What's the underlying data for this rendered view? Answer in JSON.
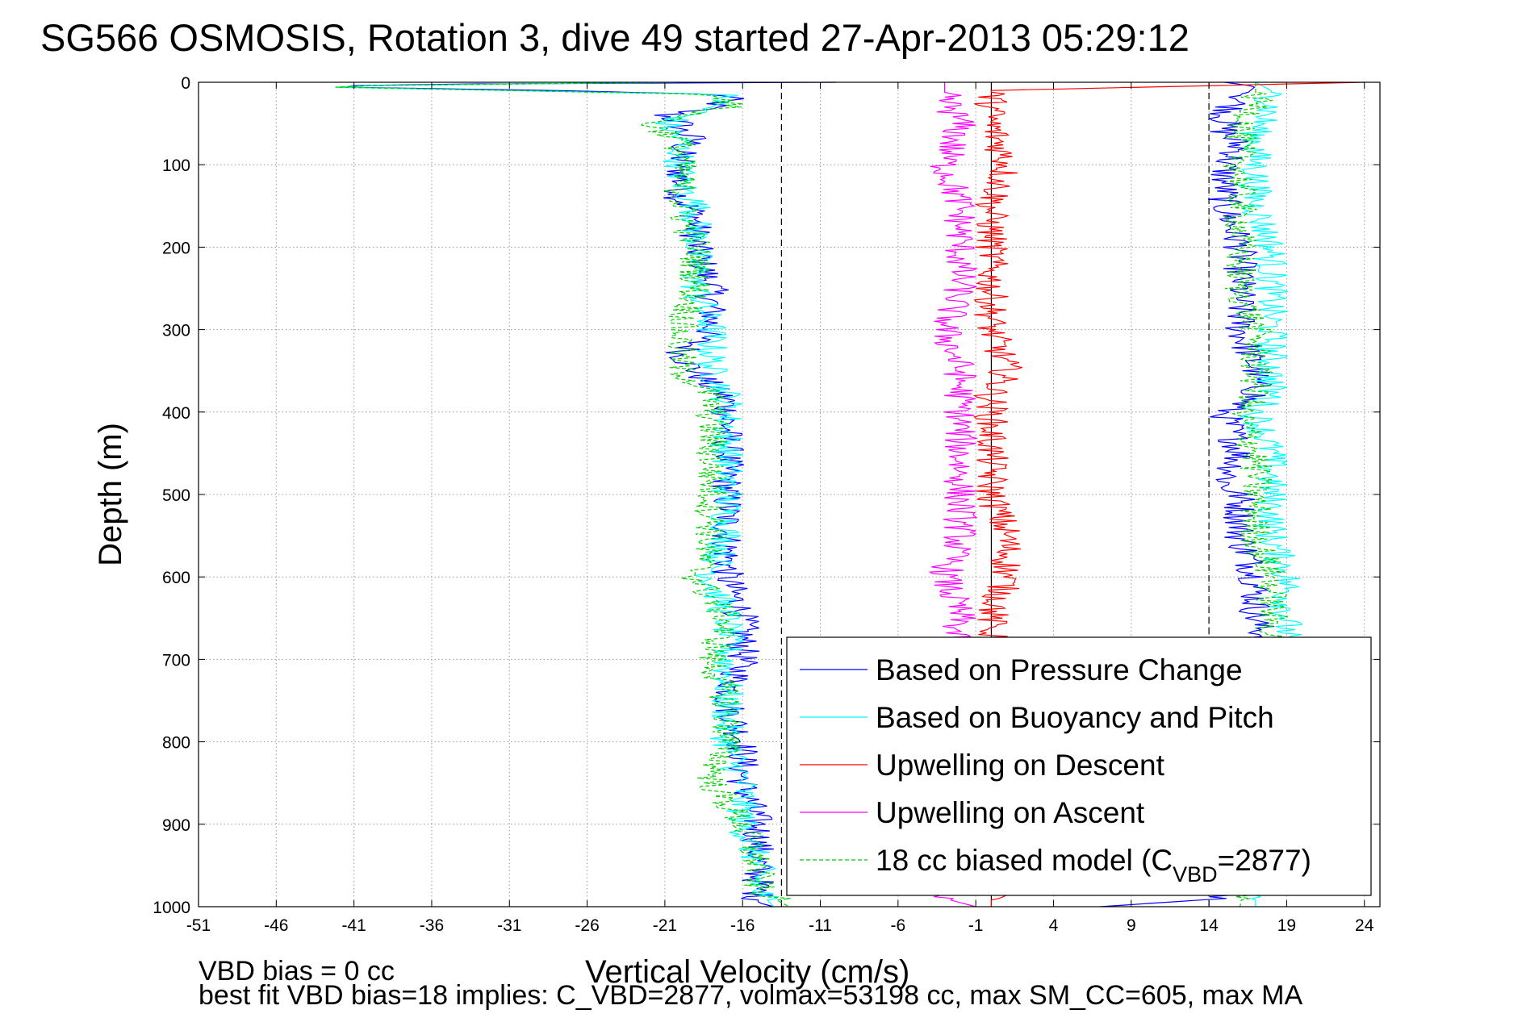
{
  "chart_data": {
    "type": "line",
    "title": "SG566 OSMOSIS, Rotation 3, dive 49 started 27-Apr-2013 05:29:12",
    "xlabel": "Vertical Velocity (cm/s)",
    "ylabel": "Depth (m)",
    "xlim": [
      -51,
      25
    ],
    "ylim": [
      1000,
      0
    ],
    "y_reversed": true,
    "xticks": [
      -51,
      -46,
      -41,
      -36,
      -31,
      -26,
      -21,
      -16,
      -11,
      -6,
      -1,
      4,
      9,
      14,
      19,
      24
    ],
    "yticks": [
      0,
      100,
      200,
      300,
      400,
      500,
      600,
      700,
      800,
      900,
      1000
    ],
    "grid": true,
    "legend_position": "bottom-right",
    "reference_lines": [
      {
        "x": -13.5,
        "style": "dashed"
      },
      {
        "x": 14,
        "style": "dashed"
      },
      {
        "x": 0,
        "style": "solid"
      }
    ],
    "series": [
      {
        "name": "Based on Pressure Change",
        "color": "#0000ff",
        "style": "solid",
        "groups": [
          {
            "depth": [
              0,
              2,
              5,
              10,
              15,
              20,
              30,
              40,
              50,
              60,
              70,
              80,
              100,
              120,
              140,
              160,
              200,
              250,
              300,
              330,
              350,
              370,
              385,
              400,
              450,
              500,
              550,
              600,
              650,
              700,
              750,
              800,
              850,
              900,
              950,
              980,
              995,
              1000
            ],
            "velocity": [
              -10,
              -33,
              -45,
              -28,
              -17,
              -17,
              -18,
              -21,
              -20,
              -20,
              -19,
              -20,
              -20,
              -20,
              -20,
              -19,
              -19,
              -18,
              -18,
              -20,
              -19,
              -18,
              -17,
              -17,
              -17,
              -17,
              -17,
              -17,
              -16,
              -16,
              -17,
              -16,
              -16,
              -15,
              -15,
              -15,
              -15,
              -14
            ]
          },
          {
            "depth": [
              0,
              5,
              20,
              40,
              60,
              80,
              100,
              120,
              150,
              200,
              250,
              300,
              350,
              380,
              400,
              450,
              490,
              500,
              550,
              600,
              650,
              700,
              750,
              800,
              850,
              900,
              950,
              990,
              1000
            ],
            "velocity": [
              15,
              17,
              16,
              15,
              15,
              16,
              15,
              15,
              15,
              16,
              16,
              16,
              17,
              17,
              15,
              16,
              15,
              16,
              16,
              17,
              17,
              18,
              18,
              17,
              17,
              17,
              17,
              15,
              7
            ]
          }
        ]
      },
      {
        "name": "Based on Buoyancy and Pitch",
        "color": "#00ffff",
        "style": "solid",
        "groups": [
          {
            "depth": [
              0,
              5,
              15,
              30,
              50,
              70,
              90,
              120,
              150,
              200,
              250,
              300,
              350,
              380,
              400,
              450,
              500,
              550,
              600,
              650,
              700,
              750,
              800,
              850,
              900,
              950,
              980,
              1000
            ],
            "velocity": [
              -20,
              -45,
              -17,
              -18,
              -21,
              -20,
              -20,
              -20,
              -19,
              -19,
              -19,
              -18,
              -18,
              -17,
              -17,
              -17,
              -17,
              -17,
              -18,
              -17,
              -17,
              -17,
              -17,
              -16,
              -16,
              -15,
              -15,
              -14
            ]
          },
          {
            "depth": [
              0,
              10,
              30,
              60,
              100,
              150,
              200,
              250,
              300,
              350,
              380,
              400,
              450,
              500,
              550,
              600,
              650,
              700,
              800,
              900,
              1000
            ],
            "velocity": [
              17,
              18,
              18,
              17,
              17,
              17,
              18,
              18,
              18,
              18,
              18,
              17,
              18,
              18,
              18,
              19,
              19,
              19,
              18,
              17,
              17
            ]
          }
        ]
      },
      {
        "name": "Upwelling on Descent",
        "color": "#ff0000",
        "style": "solid",
        "groups": [
          {
            "depth": [
              0,
              10,
              50,
              100,
              150,
              200,
              250,
              300,
              350,
              380,
              400,
              450,
              500,
              550,
              600,
              650,
              700,
              800,
              900,
              950,
              990,
              1000
            ],
            "velocity": [
              24,
              0,
              0,
              1,
              0,
              0,
              0,
              0,
              1,
              0,
              0,
              0,
              0,
              1,
              1,
              0,
              0,
              0,
              0,
              0,
              0,
              0
            ]
          }
        ]
      },
      {
        "name": "Upwelling on Ascent",
        "color": "#ff00ff",
        "style": "solid",
        "groups": [
          {
            "depth": [
              0,
              20,
              50,
              100,
              150,
              200,
              250,
              300,
              350,
              380,
              400,
              450,
              500,
              550,
              600,
              650,
              700,
              800,
              900,
              950,
              990,
              1000
            ],
            "velocity": [
              -3,
              -3,
              -2,
              -3,
              -2,
              -2,
              -2,
              -3,
              -2,
              -2,
              -2,
              -2,
              -2,
              -2,
              -3,
              -2,
              -3,
              -3,
              -2,
              -2,
              -3,
              -1
            ]
          }
        ]
      },
      {
        "name": "18 cc biased model (C",
        "name_sub": "VBD",
        "name_tail": "=2877)",
        "color": "#00cc00",
        "style": "dashed",
        "groups": [
          {
            "depth": [
              0,
              5,
              15,
              30,
              50,
              70,
              90,
              120,
              150,
              200,
              250,
              300,
              350,
              380,
              400,
              450,
              500,
              550,
              600,
              650,
              700,
              750,
              800,
              850,
              900,
              950,
              980,
              1000
            ],
            "velocity": [
              -20,
              -45,
              -17,
              -17,
              -22,
              -20,
              -20,
              -20,
              -20,
              -19,
              -19,
              -20,
              -20,
              -18,
              -18,
              -18,
              -18,
              -18,
              -19,
              -17,
              -18,
              -17,
              -17,
              -18,
              -16,
              -15,
              -15,
              -13
            ]
          },
          {
            "depth": [
              0,
              10,
              30,
              60,
              100,
              150,
              200,
              250,
              300,
              350,
              380,
              400,
              450,
              500,
              550,
              600,
              650,
              700,
              800,
              900,
              1000
            ],
            "velocity": [
              17,
              17,
              17,
              16,
              16,
              16,
              16,
              16,
              17,
              17,
              17,
              16,
              17,
              17,
              17,
              18,
              18,
              18,
              18,
              17,
              16
            ]
          }
        ]
      }
    ],
    "annotations": {
      "vbd_bias": "VBD bias = 0 cc",
      "best_fit": "best fit VBD bias=18 implies: C_VBD=2877, volmax=53198 cc, max SM_CC=605, max MA"
    }
  }
}
